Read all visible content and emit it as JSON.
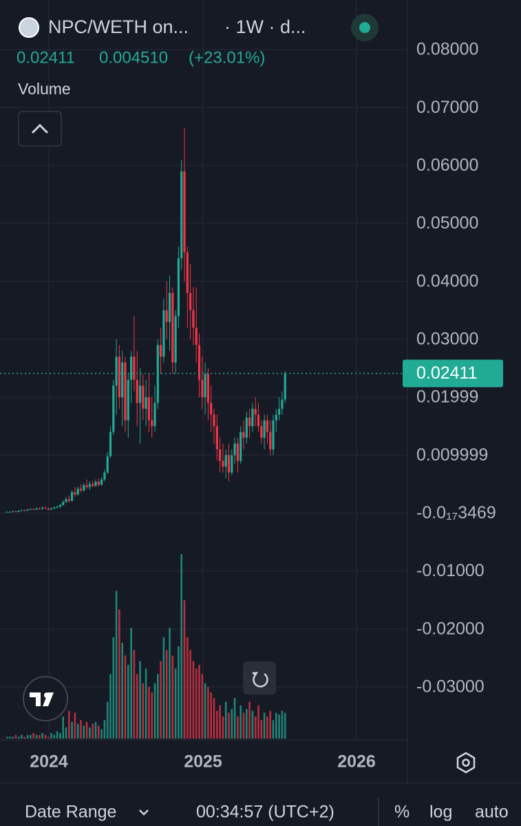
{
  "header": {
    "symbol": "NPC/WETH on...",
    "interval": "· 1W · d...",
    "last": "0.02411",
    "change": "0.004510",
    "change_pct": "(+23.01%)",
    "volume_label": "Volume"
  },
  "chart_data": {
    "type": "candlestick",
    "up_color": "#22ab94",
    "down_color": "#f23645",
    "candles": [
      [
        0.0002,
        0.0003,
        0.0001,
        0.0002
      ],
      [
        0.0002,
        0.0003,
        0.0001,
        0.0002
      ],
      [
        0.0002,
        0.0004,
        0.0002,
        0.0003
      ],
      [
        0.0003,
        0.0004,
        0.0002,
        0.0002
      ],
      [
        0.0002,
        0.0005,
        0.0002,
        0.0004
      ],
      [
        0.0004,
        0.0006,
        0.0003,
        0.0005
      ],
      [
        0.0005,
        0.0006,
        0.0003,
        0.0004
      ],
      [
        0.0004,
        0.0007,
        0.0004,
        0.0006
      ],
      [
        0.0006,
        0.0008,
        0.0005,
        0.0007
      ],
      [
        0.0007,
        0.0008,
        0.0005,
        0.0006
      ],
      [
        0.0006,
        0.0009,
        0.0005,
        0.0008
      ],
      [
        0.0008,
        0.001,
        0.0006,
        0.0007
      ],
      [
        0.0007,
        0.0011,
        0.0006,
        0.0009
      ],
      [
        0.0009,
        0.0012,
        0.0007,
        0.0008
      ],
      [
        0.0008,
        0.001,
        0.0005,
        0.0006
      ],
      [
        0.0006,
        0.0009,
        0.0005,
        0.0008
      ],
      [
        0.0008,
        0.0011,
        0.0007,
        0.001
      ],
      [
        0.001,
        0.0013,
        0.0008,
        0.0011
      ],
      [
        0.0011,
        0.0016,
        0.0009,
        0.0014
      ],
      [
        0.0014,
        0.0022,
        0.0012,
        0.0019
      ],
      [
        0.0019,
        0.0028,
        0.0017,
        0.0024
      ],
      [
        0.0024,
        0.003,
        0.0018,
        0.0021
      ],
      [
        0.0021,
        0.004,
        0.002,
        0.0036
      ],
      [
        0.0036,
        0.0045,
        0.0028,
        0.0032
      ],
      [
        0.0032,
        0.0046,
        0.003,
        0.0042
      ],
      [
        0.0042,
        0.005,
        0.0036,
        0.0039
      ],
      [
        0.0039,
        0.0052,
        0.0037,
        0.0048
      ],
      [
        0.0048,
        0.0058,
        0.0042,
        0.0045
      ],
      [
        0.0045,
        0.0055,
        0.004,
        0.005
      ],
      [
        0.005,
        0.0056,
        0.0044,
        0.0047
      ],
      [
        0.0047,
        0.0058,
        0.0045,
        0.0054
      ],
      [
        0.0054,
        0.006,
        0.0046,
        0.0049
      ],
      [
        0.0049,
        0.0062,
        0.0047,
        0.0058
      ],
      [
        0.0058,
        0.0075,
        0.0055,
        0.007
      ],
      [
        0.007,
        0.0105,
        0.0068,
        0.0098
      ],
      [
        0.0098,
        0.015,
        0.0095,
        0.014
      ],
      [
        0.014,
        0.023,
        0.0135,
        0.022
      ],
      [
        0.022,
        0.03,
        0.017,
        0.027
      ],
      [
        0.027,
        0.029,
        0.018,
        0.02
      ],
      [
        0.02,
        0.028,
        0.015,
        0.026
      ],
      [
        0.026,
        0.027,
        0.014,
        0.016
      ],
      [
        0.016,
        0.024,
        0.013,
        0.023
      ],
      [
        0.023,
        0.028,
        0.019,
        0.027
      ],
      [
        0.027,
        0.034,
        0.021,
        0.023
      ],
      [
        0.023,
        0.028,
        0.015,
        0.019
      ],
      [
        0.019,
        0.025,
        0.012,
        0.022
      ],
      [
        0.022,
        0.024,
        0.016,
        0.018
      ],
      [
        0.018,
        0.023,
        0.015,
        0.02
      ],
      [
        0.02,
        0.024,
        0.014,
        0.016
      ],
      [
        0.016,
        0.02,
        0.013,
        0.015
      ],
      [
        0.015,
        0.022,
        0.014,
        0.019
      ],
      [
        0.019,
        0.03,
        0.018,
        0.029
      ],
      [
        0.029,
        0.032,
        0.024,
        0.027
      ],
      [
        0.027,
        0.037,
        0.026,
        0.035
      ],
      [
        0.035,
        0.04,
        0.03,
        0.033
      ],
      [
        0.033,
        0.041,
        0.028,
        0.038
      ],
      [
        0.038,
        0.039,
        0.024,
        0.026
      ],
      [
        0.026,
        0.035,
        0.024,
        0.034
      ],
      [
        0.034,
        0.046,
        0.032,
        0.044
      ],
      [
        0.044,
        0.061,
        0.042,
        0.059
      ],
      [
        0.059,
        0.0665,
        0.04,
        0.045
      ],
      [
        0.045,
        0.046,
        0.032,
        0.038
      ],
      [
        0.038,
        0.043,
        0.03,
        0.035
      ],
      [
        0.035,
        0.039,
        0.029,
        0.032
      ],
      [
        0.032,
        0.039,
        0.026,
        0.029
      ],
      [
        0.029,
        0.031,
        0.02,
        0.023
      ],
      [
        0.023,
        0.027,
        0.018,
        0.02
      ],
      [
        0.02,
        0.026,
        0.017,
        0.024
      ],
      [
        0.024,
        0.025,
        0.016,
        0.019
      ],
      [
        0.019,
        0.022,
        0.014,
        0.017
      ],
      [
        0.017,
        0.018,
        0.012,
        0.015
      ],
      [
        0.015,
        0.017,
        0.009,
        0.011
      ],
      [
        0.011,
        0.013,
        0.007,
        0.009
      ],
      [
        0.009,
        0.012,
        0.007,
        0.008
      ],
      [
        0.008,
        0.011,
        0.006,
        0.01
      ],
      [
        0.01,
        0.012,
        0.0055,
        0.007
      ],
      [
        0.007,
        0.011,
        0.0065,
        0.01
      ],
      [
        0.01,
        0.013,
        0.0085,
        0.012
      ],
      [
        0.012,
        0.013,
        0.007,
        0.009
      ],
      [
        0.009,
        0.015,
        0.0085,
        0.014
      ],
      [
        0.014,
        0.016,
        0.011,
        0.013
      ],
      [
        0.013,
        0.0175,
        0.012,
        0.0165
      ],
      [
        0.0165,
        0.018,
        0.013,
        0.015
      ],
      [
        0.015,
        0.019,
        0.014,
        0.018
      ],
      [
        0.018,
        0.02,
        0.015,
        0.017
      ],
      [
        0.017,
        0.019,
        0.014,
        0.015
      ],
      [
        0.015,
        0.016,
        0.012,
        0.013
      ],
      [
        0.013,
        0.017,
        0.011,
        0.016
      ],
      [
        0.016,
        0.017,
        0.012,
        0.014
      ],
      [
        0.014,
        0.016,
        0.01,
        0.011
      ],
      [
        0.011,
        0.017,
        0.01,
        0.016
      ],
      [
        0.016,
        0.018,
        0.014,
        0.017
      ],
      [
        0.017,
        0.02,
        0.016,
        0.018
      ],
      [
        0.018,
        0.021,
        0.017,
        0.0196
      ],
      [
        0.0196,
        0.0245,
        0.019,
        0.02411
      ]
    ],
    "volume": [
      1,
      1,
      1,
      2,
      1,
      2,
      1,
      2,
      2,
      3,
      2,
      2,
      3,
      2,
      1,
      3,
      2,
      4,
      3,
      12,
      6,
      15,
      9,
      14,
      8,
      10,
      7,
      9,
      6,
      8,
      9,
      7,
      5,
      10,
      20,
      35,
      55,
      80,
      70,
      52,
      45,
      40,
      60,
      48,
      35,
      42,
      30,
      38,
      28,
      25,
      30,
      35,
      42,
      55,
      48,
      60,
      45,
      38,
      50,
      100,
      75,
      55,
      48,
      42,
      38,
      40,
      35,
      30,
      28,
      25,
      22,
      15,
      18,
      12,
      20,
      14,
      16,
      22,
      12,
      18,
      14,
      16,
      20,
      15,
      12,
      18,
      10,
      14,
      12,
      15,
      10,
      14,
      13,
      15,
      14
    ],
    "last_price": 0.02411,
    "ylim": [
      -0.03917,
      0.08857
    ],
    "yticks": [
      {
        "value": 0.08,
        "label": "0.08000"
      },
      {
        "value": 0.07,
        "label": "0.07000"
      },
      {
        "value": 0.06,
        "label": "0.06000"
      },
      {
        "value": 0.05,
        "label": "0.05000"
      },
      {
        "value": 0.04,
        "label": "0.04000"
      },
      {
        "value": 0.03,
        "label": "0.03000"
      },
      0.01999,
      0.009999,
      {
        "value": -3.469e-18,
        "label": "-0.0₁₇3469"
      },
      {
        "value": -0.01,
        "label": "-0.01000"
      },
      {
        "value": -0.02,
        "label": "-0.02000"
      },
      {
        "value": -0.03,
        "label": "-0.03000"
      }
    ],
    "x_labels": [
      "2024",
      "2025",
      "2026"
    ],
    "grid": true
  },
  "footer": {
    "date_range": "Date Range",
    "time": "00:34:57 (UTC+2)",
    "percent": "%",
    "log": "log",
    "auto": "auto"
  }
}
